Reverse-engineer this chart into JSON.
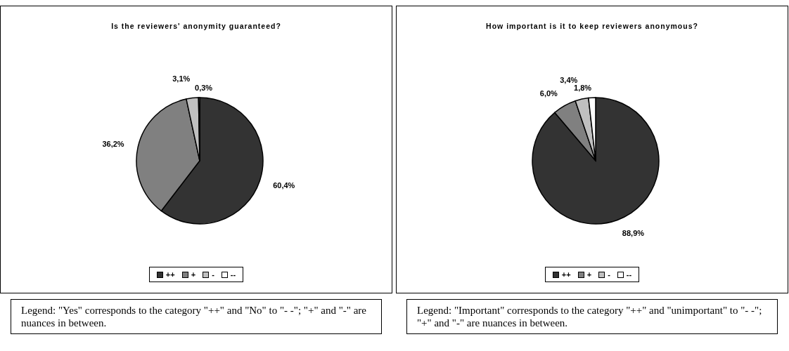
{
  "chart_data": [
    {
      "type": "pie",
      "title": "Is the reviewers' anonymity guaranteed?",
      "categories": [
        "++",
        "+",
        "-",
        "--"
      ],
      "values": [
        60.4,
        36.2,
        3.1,
        0.3
      ],
      "value_labels": [
        "60,4%",
        "36,2%",
        "3,1%",
        "0,3%"
      ],
      "colors": [
        "#333333",
        "#808080",
        "#c0c0c0",
        "#ffffff"
      ],
      "legend": "bottom",
      "annotations": [
        "Legend: \"Yes\" corresponds to the category \"++\" and \"No\" to \"- -\"; \"+\" and \"-\" are nuances in between."
      ]
    },
    {
      "type": "pie",
      "title": "How important is it to keep reviewers anonymous?",
      "categories": [
        "++",
        "+",
        "-",
        "--"
      ],
      "values": [
        88.9,
        6.0,
        3.4,
        1.8
      ],
      "value_labels": [
        "88,9%",
        "6,0%",
        "3,4%",
        "1,8%"
      ],
      "colors": [
        "#333333",
        "#808080",
        "#c0c0c0",
        "#ffffff"
      ],
      "legend": "bottom",
      "annotations": [
        "Legend: \"Important\" corresponds to the category \"++\" and \"unimportant\" to \"- -\"; \"+\" and \"-\" are nuances in between."
      ]
    }
  ]
}
